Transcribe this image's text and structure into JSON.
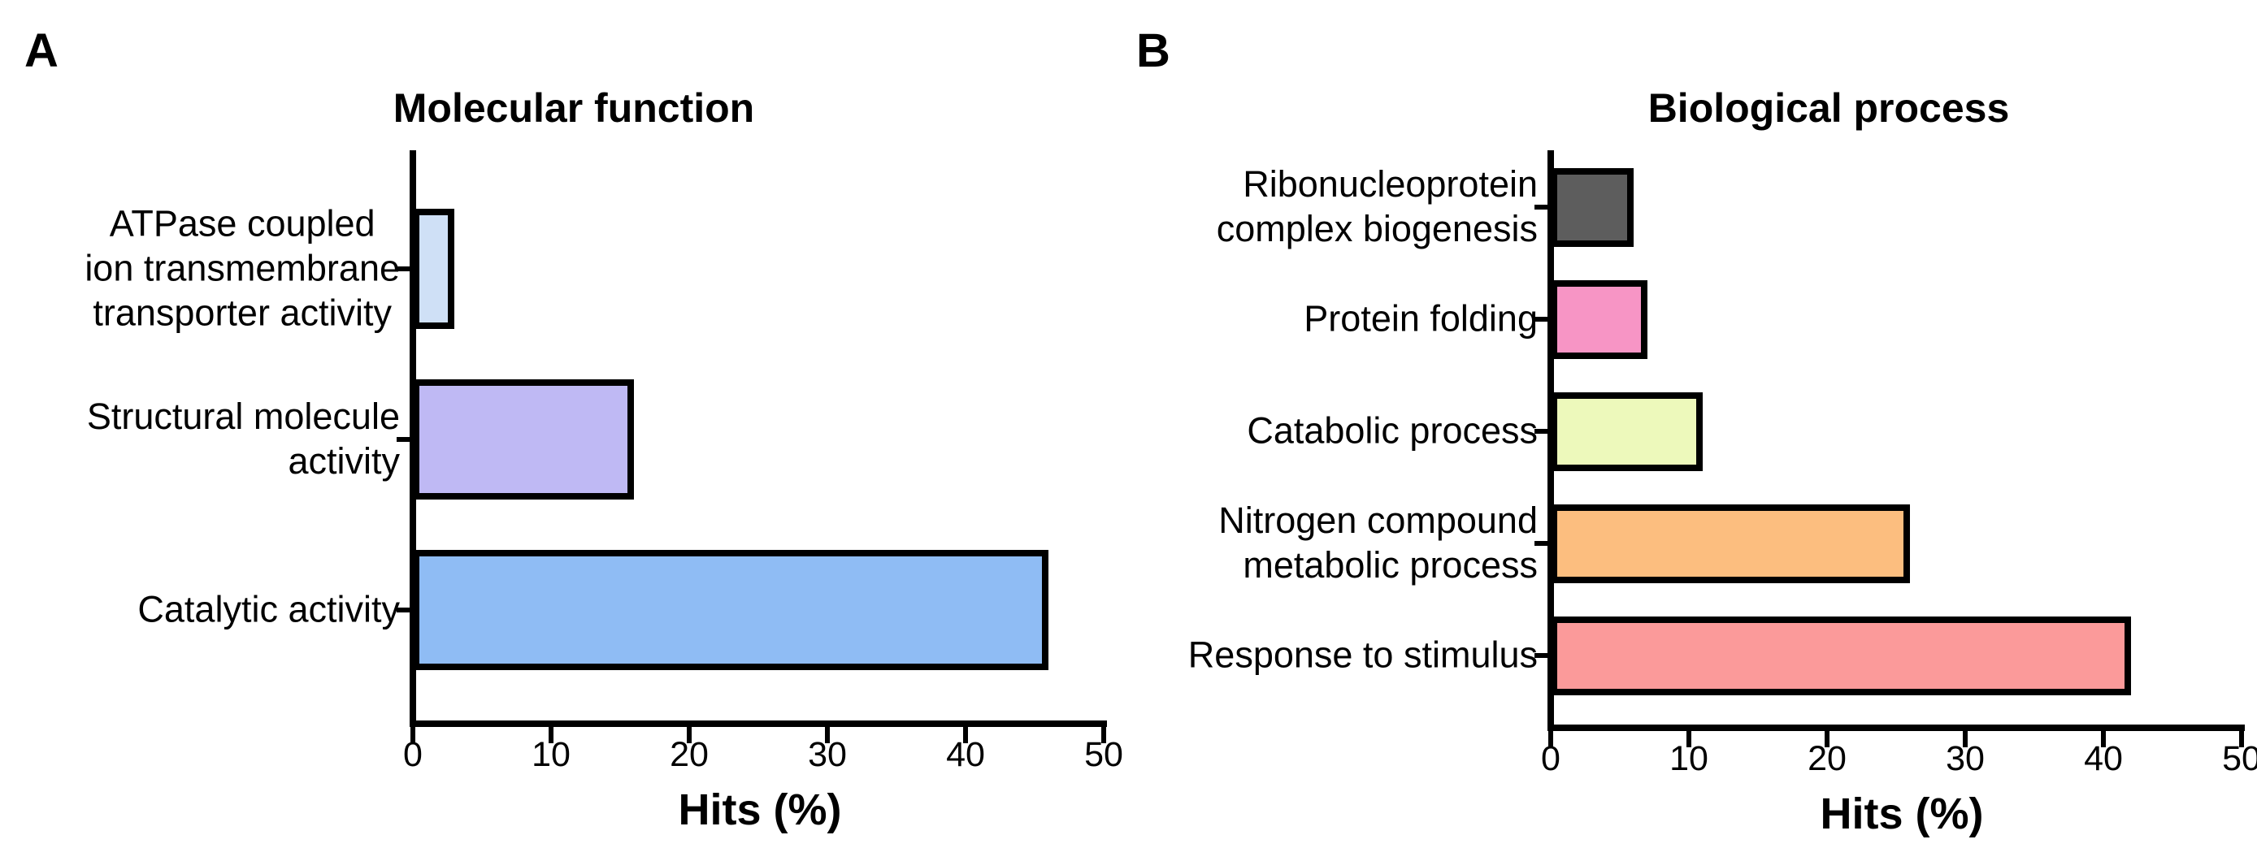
{
  "figure": {
    "background": "#ffffff",
    "axis_color": "#000000",
    "bar_border_color": "#000000"
  },
  "chart_data": [
    {
      "type": "bar",
      "orientation": "horizontal",
      "panel_letter": "A",
      "title": "Molecular function",
      "xlabel": "Hits (%)",
      "xlim": [
        0,
        50
      ],
      "xticks": [
        "0",
        "10",
        "20",
        "30",
        "40",
        "50"
      ],
      "grid": false,
      "legend": "none",
      "categories": [
        {
          "label": "ATPase coupled\nion transmembrane\ntransporter activity",
          "value": 3,
          "color": "#cfe0f6",
          "align": "center"
        },
        {
          "label": "Structural molecule\nactivity",
          "value": 16,
          "color": "#bfb9f4",
          "align": "right"
        },
        {
          "label": "Catalytic activity",
          "value": 46,
          "color": "#8fbcf4",
          "align": "right"
        }
      ]
    },
    {
      "type": "bar",
      "orientation": "horizontal",
      "panel_letter": "B",
      "title": "Biological process",
      "xlabel": "Hits (%)",
      "xlim": [
        0,
        50
      ],
      "xticks": [
        "0",
        "10",
        "20",
        "30",
        "40",
        "50"
      ],
      "grid": false,
      "legend": "none",
      "categories": [
        {
          "label": "Ribonucleoprotein\ncomplex biogenesis",
          "value": 6,
          "color": "#5d5d5d",
          "align": "right"
        },
        {
          "label": "Protein folding",
          "value": 7,
          "color": "#f795c5",
          "align": "right"
        },
        {
          "label": "Catabolic process",
          "value": 11,
          "color": "#edf9bb",
          "align": "right"
        },
        {
          "label": "Nitrogen compound\nmetabolic process",
          "value": 26,
          "color": "#fcbe7f",
          "align": "right"
        },
        {
          "label": "Response to stimulus",
          "value": 42,
          "color": "#fb9a9a",
          "align": "right"
        }
      ]
    }
  ]
}
